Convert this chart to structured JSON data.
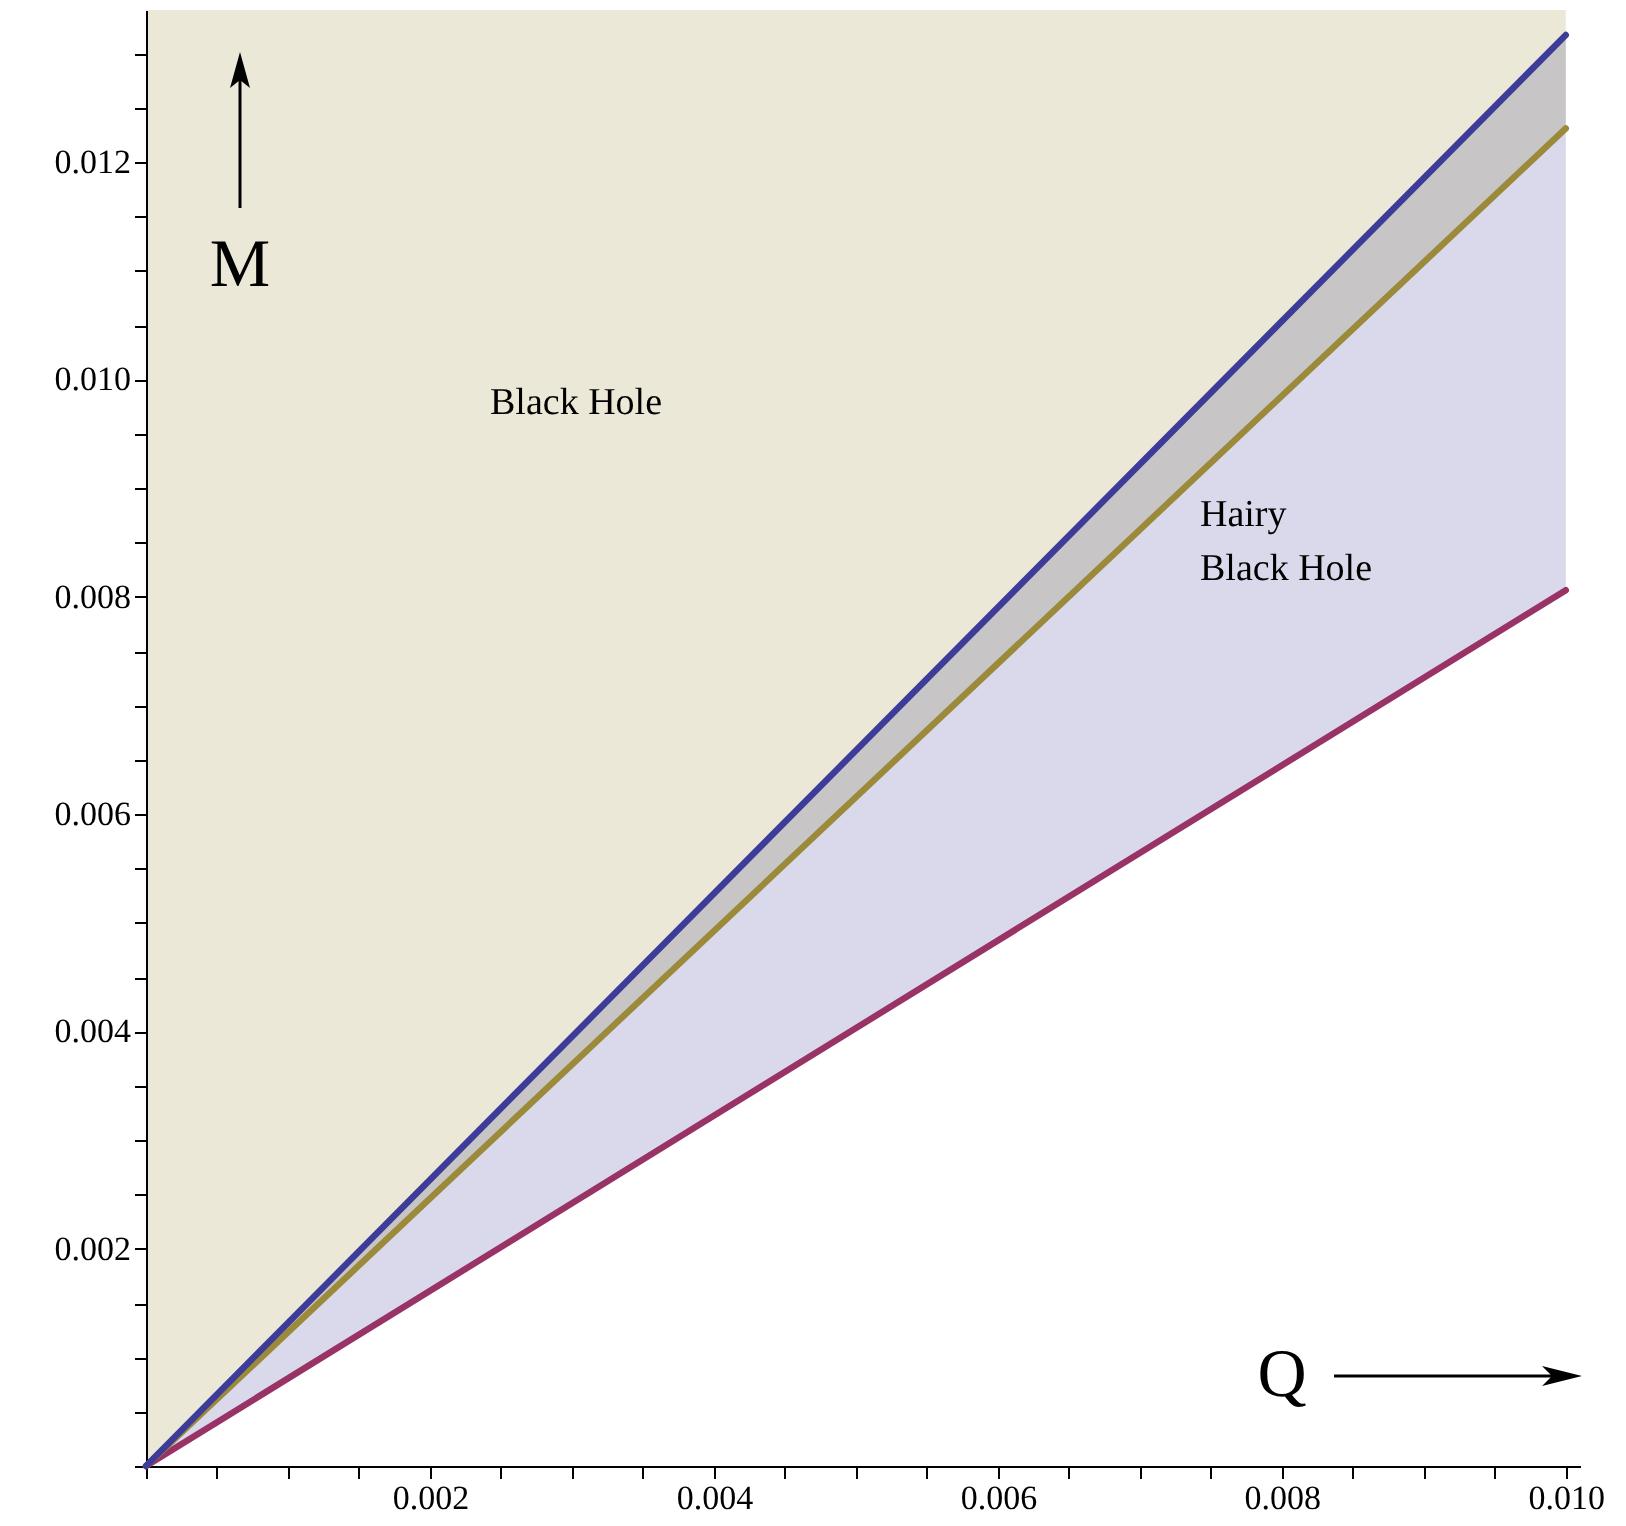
{
  "chart_data": {
    "type": "line",
    "xlabel": "Q",
    "ylabel": "M",
    "x": [
      0,
      0.01
    ],
    "series": [
      {
        "type": "line",
        "color": "#993366",
        "values": [
          0,
          0.00806
        ]
      },
      {
        "type": "line",
        "color": "#9a8a3a",
        "values": [
          0,
          0.01231
        ],
        "lower": [
          0,
          0.01231
        ],
        "upper": [
          0.0134,
          0.0134
        ]
      },
      {
        "type": "line",
        "color": "#3d3d99",
        "values": [
          0,
          0.01317
        ],
        "lower": [
          0,
          0.00806
        ],
        "upper": [
          0,
          0.01317
        ]
      }
    ],
    "annotations": [
      "Black Hole",
      "Hairy\nBlack Hole"
    ],
    "xlim": [
      0,
      0.0101
    ],
    "ylim": [
      0,
      0.0134
    ],
    "xticks": [
      {
        "value": 0,
        "label": null
      },
      {
        "value": 0.0005,
        "label": null
      },
      {
        "value": 0.001,
        "label": null
      },
      {
        "value": 0.0015,
        "label": null
      },
      {
        "value": 0.002,
        "label": "0.002"
      },
      {
        "value": 0.0025,
        "label": null
      },
      {
        "value": 0.003,
        "label": null
      },
      {
        "value": 0.0035,
        "label": null
      },
      {
        "value": 0.004,
        "label": "0.004"
      },
      {
        "value": 0.0045,
        "label": null
      },
      {
        "value": 0.005,
        "label": null
      },
      {
        "value": 0.0055,
        "label": null
      },
      {
        "value": 0.006,
        "label": "0.006"
      },
      {
        "value": 0.0065,
        "label": null
      },
      {
        "value": 0.007,
        "label": null
      },
      {
        "value": 0.0075,
        "label": null
      },
      {
        "value": 0.008,
        "label": "0.008"
      },
      {
        "value": 0.0085,
        "label": null
      },
      {
        "value": 0.009,
        "label": null
      },
      {
        "value": 0.0095,
        "label": null
      },
      {
        "value": 0.01,
        "label": "0.010"
      }
    ],
    "yticks": [
      {
        "value": 0,
        "label": null
      },
      {
        "value": 0.0005,
        "label": null
      },
      {
        "value": 0.001,
        "label": null
      },
      {
        "value": 0.0015,
        "label": null
      },
      {
        "value": 0.002,
        "label": "0.002"
      },
      {
        "value": 0.0025,
        "label": null
      },
      {
        "value": 0.003,
        "label": null
      },
      {
        "value": 0.0035,
        "label": null
      },
      {
        "value": 0.004,
        "label": "0.004"
      },
      {
        "value": 0.0045,
        "label": null
      },
      {
        "value": 0.005,
        "label": null
      },
      {
        "value": 0.0055,
        "label": null
      },
      {
        "value": 0.006,
        "label": "0.006"
      },
      {
        "value": 0.0065,
        "label": null
      },
      {
        "value": 0.007,
        "label": null
      },
      {
        "value": 0.0075,
        "label": null
      },
      {
        "value": 0.008,
        "label": "0.008"
      },
      {
        "value": 0.0085,
        "label": null
      },
      {
        "value": 0.009,
        "label": null
      },
      {
        "value": 0.0095,
        "label": null
      },
      {
        "value": 0.01,
        "label": "0.010"
      },
      {
        "value": 0.0105,
        "label": null
      },
      {
        "value": 0.011,
        "label": null
      },
      {
        "value": 0.0115,
        "label": null
      },
      {
        "value": 0.012,
        "label": "0.012"
      },
      {
        "value": 0.0125,
        "label": null
      },
      {
        "value": 0.013,
        "label": null
      }
    ],
    "grid": false,
    "marker": "none",
    "line_style": "solid"
  }
}
